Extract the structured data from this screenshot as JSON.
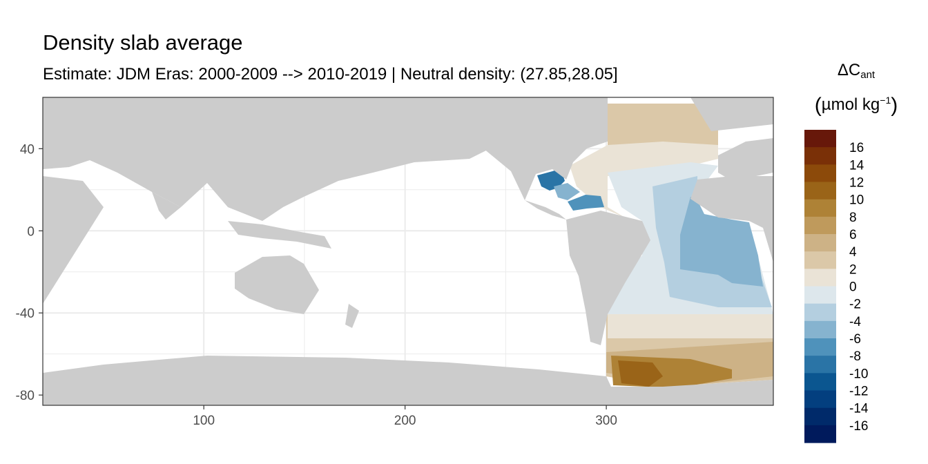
{
  "title": "Density slab average",
  "subtitle": "Estimate: JDM Eras: 2000-2009 --> 2010-2019 | Neutral density: (27.85,28.05]",
  "legend": {
    "title_symbol": "ΔC",
    "title_subscript": "ant",
    "unit_open": "(",
    "unit_text": "µmol kg",
    "unit_superscript": "−1",
    "unit_close": ")",
    "bins": [
      {
        "label": "16",
        "color": "#67180a"
      },
      {
        "label": "14",
        "color": "#7a3007"
      },
      {
        "label": "12",
        "color": "#8c4a0a"
      },
      {
        "label": "10",
        "color": "#9a6418"
      },
      {
        "label": "8",
        "color": "#ae8236"
      },
      {
        "label": "6",
        "color": "#bf9a5c"
      },
      {
        "label": "4",
        "color": "#cdb286"
      },
      {
        "label": "2",
        "color": "#dbc8a8"
      },
      {
        "label": "0",
        "color": "#eae3d6"
      },
      {
        "label": "-2",
        "color": "#dde7ec"
      },
      {
        "label": "-4",
        "color": "#b4cfe0"
      },
      {
        "label": "-6",
        "color": "#86b3cf"
      },
      {
        "label": "-8",
        "color": "#4f92bb"
      },
      {
        "label": "-10",
        "color": "#2a74a6"
      },
      {
        "label": "-12",
        "color": "#0b5690"
      },
      {
        "label": "-14",
        "color": "#033f7f"
      },
      {
        "label": "-16",
        "color": "#002a6a"
      },
      {
        "label": "",
        "color": "#001a5c"
      }
    ]
  },
  "axes": {
    "x_ticks": [
      100,
      200,
      300
    ],
    "y_ticks": [
      40,
      0,
      -40,
      -80
    ],
    "x_range": [
      20,
      383
    ],
    "y_range": [
      -85,
      65
    ]
  },
  "map": {
    "land_color": "#cccccc",
    "ocean_color": "#ffffff",
    "grid_color": "#ebebeb"
  }
}
